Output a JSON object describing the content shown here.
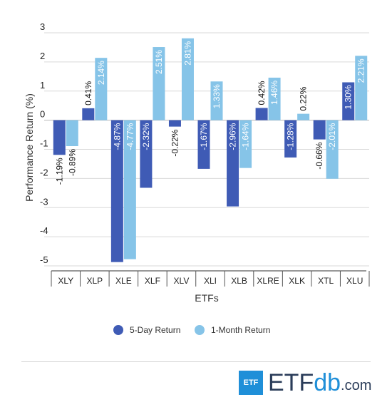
{
  "chart_data": {
    "type": "bar",
    "xlabel": "ETFs",
    "ylabel": "Performance Return (%)",
    "ylim": [
      -5,
      3
    ],
    "yticks": [
      3,
      2,
      1,
      0,
      -1,
      -2,
      -3,
      -4,
      -5
    ],
    "grid": true,
    "legend_position": "bottom",
    "categories": [
      "XLY",
      "XLP",
      "XLE",
      "XLF",
      "XLV",
      "XLI",
      "XLB",
      "XLRE",
      "XLK",
      "XTL",
      "XLU"
    ],
    "series": [
      {
        "name": "5-Day Return",
        "color": "#3f5bb5",
        "values": [
          -1.19,
          0.41,
          -4.87,
          -2.32,
          -0.22,
          -1.67,
          -2.96,
          0.42,
          -1.28,
          -0.66,
          1.3
        ],
        "labels": [
          "-1.19%",
          "0.41%",
          "-4.87%",
          "-2.32%",
          "-0.22%",
          "-1.67%",
          "-2.96%",
          "0.42%",
          "-1.28%",
          "-0.66%",
          "1.30%"
        ]
      },
      {
        "name": "1-Month Return",
        "color": "#86c4e8",
        "values": [
          -0.89,
          2.14,
          -4.77,
          2.51,
          2.81,
          1.33,
          -1.64,
          1.46,
          0.22,
          -2.01,
          2.21
        ],
        "labels": [
          "-0.89%",
          "2.14%",
          "-4.77%",
          "2.51%",
          "2.81%",
          "1.33%",
          "-1.64%",
          "1.46%",
          "0.22%",
          "-2.01%",
          "2.21%"
        ]
      }
    ]
  },
  "logo": {
    "box": "ETF",
    "main": "ETF",
    "accent": "db",
    "suffix": ".com"
  }
}
